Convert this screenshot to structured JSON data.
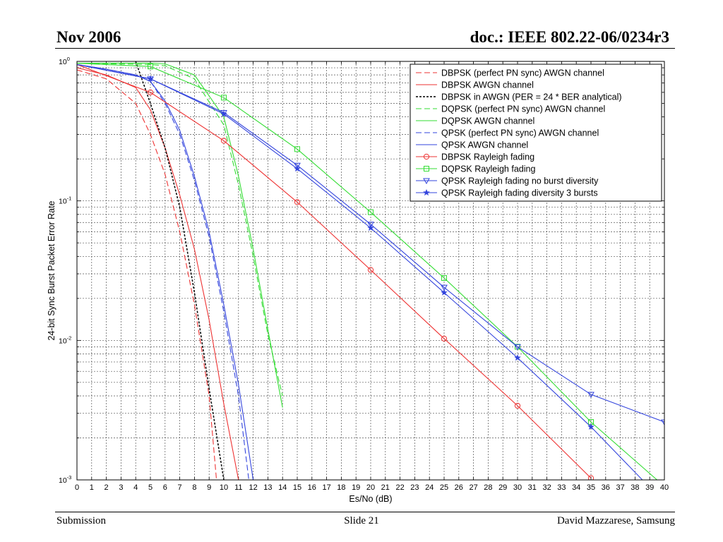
{
  "slide": {
    "header_left": "Nov 2006",
    "header_right": "doc.: IEEE 802.22-06/0234r3",
    "footer_left": "Submission",
    "footer_center": "Slide 21",
    "footer_right": "David Mazzarese, Samsung"
  },
  "colors": {
    "red": "#ee3333",
    "green": "#33dd33",
    "blue": "#3344dd",
    "black": "#000000",
    "grid": "#555555"
  },
  "chart_data": {
    "type": "line",
    "title": "",
    "xlabel": "Es/No (dB)",
    "ylabel": "24-bit Sync Burst Packet Error Rate",
    "xlim": [
      0,
      40
    ],
    "ylim": [
      0.001,
      1
    ],
    "yscale": "log",
    "grid": true,
    "legend_position": "top-right",
    "x_ticks": [
      "0",
      "1",
      "2",
      "3",
      "4",
      "5",
      "6",
      "7",
      "8",
      "9",
      "10",
      "11",
      "12",
      "13",
      "14",
      "15",
      "16",
      "17",
      "18",
      "19",
      "20",
      "21",
      "22",
      "23",
      "24",
      "25",
      "26",
      "27",
      "28",
      "29",
      "30",
      "31",
      "32",
      "33",
      "34",
      "35",
      "36",
      "37",
      "38",
      "39",
      "40"
    ],
    "y_ticks": [
      {
        "value": 1,
        "base": "10",
        "exp": "0"
      },
      {
        "value": 0.1,
        "base": "10",
        "exp": "-1"
      },
      {
        "value": 0.01,
        "base": "10",
        "exp": "-2"
      },
      {
        "value": 0.001,
        "base": "10",
        "exp": "-3"
      }
    ],
    "series": [
      {
        "name": "DBPSK (perfect PN sync) AWGN channel",
        "color": "#ee3333",
        "style": "dashed",
        "marker": "none",
        "points": [
          [
            0,
            0.87
          ],
          [
            2,
            0.75
          ],
          [
            4,
            0.5
          ],
          [
            5,
            0.3
          ],
          [
            6,
            0.155
          ],
          [
            7,
            0.06
          ],
          [
            8,
            0.018
          ],
          [
            9,
            0.004
          ],
          [
            9.5,
            0.001
          ]
        ]
      },
      {
        "name": "DBPSK AWGN channel",
        "color": "#ee3333",
        "style": "solid",
        "marker": "none",
        "points": [
          [
            0,
            0.9
          ],
          [
            2,
            0.8
          ],
          [
            4,
            0.65
          ],
          [
            5,
            0.45
          ],
          [
            6,
            0.24
          ],
          [
            7,
            0.11
          ],
          [
            8,
            0.045
          ],
          [
            9,
            0.014
          ],
          [
            10,
            0.0035
          ],
          [
            11,
            0.001
          ]
        ]
      },
      {
        "name": "DBPSK in AWGN (PER = 24 * BER analytical)",
        "color": "#000000",
        "style": "dashed",
        "marker": "none",
        "points": [
          [
            4,
            1.0
          ],
          [
            5,
            0.5
          ],
          [
            6,
            0.24
          ],
          [
            7,
            0.09
          ],
          [
            8,
            0.022
          ],
          [
            9,
            0.0045
          ],
          [
            10,
            0.001
          ]
        ]
      },
      {
        "name": "DQPSK (perfect PN sync) AWGN channel",
        "color": "#33dd33",
        "style": "dashed",
        "marker": "none",
        "points": [
          [
            0,
            0.97
          ],
          [
            5,
            0.95
          ],
          [
            6,
            0.93
          ],
          [
            8,
            0.75
          ],
          [
            10,
            0.35
          ],
          [
            11,
            0.13
          ],
          [
            12,
            0.04
          ],
          [
            13,
            0.011
          ],
          [
            14,
            0.004
          ]
        ]
      },
      {
        "name": "DQPSK AWGN channel",
        "color": "#33dd33",
        "style": "solid",
        "marker": "none",
        "points": [
          [
            0,
            0.97
          ],
          [
            5,
            0.97
          ],
          [
            6,
            0.96
          ],
          [
            8,
            0.8
          ],
          [
            10,
            0.4
          ],
          [
            11,
            0.15
          ],
          [
            12,
            0.045
          ],
          [
            13,
            0.012
          ],
          [
            14,
            0.0033
          ]
        ]
      },
      {
        "name": "QPSK (perfect PN sync) AWGN channel",
        "color": "#3344dd",
        "style": "dashed",
        "marker": "none",
        "points": [
          [
            0,
            0.95
          ],
          [
            2,
            0.88
          ],
          [
            4,
            0.8
          ],
          [
            5,
            0.72
          ],
          [
            6,
            0.5
          ],
          [
            7,
            0.3
          ],
          [
            8,
            0.14
          ],
          [
            9,
            0.055
          ],
          [
            10,
            0.016
          ],
          [
            11,
            0.004
          ],
          [
            11.7,
            0.001
          ]
        ]
      },
      {
        "name": "QPSK AWGN channel",
        "color": "#3344dd",
        "style": "solid",
        "marker": "none",
        "points": [
          [
            0,
            0.95
          ],
          [
            2,
            0.88
          ],
          [
            4,
            0.8
          ],
          [
            5,
            0.72
          ],
          [
            6,
            0.52
          ],
          [
            7,
            0.32
          ],
          [
            8,
            0.15
          ],
          [
            9,
            0.06
          ],
          [
            10,
            0.018
          ],
          [
            11,
            0.0048
          ],
          [
            12,
            0.001
          ]
        ]
      },
      {
        "name": "DBPSK Rayleigh fading",
        "color": "#ee3333",
        "style": "solid",
        "marker": "circle",
        "points": [
          [
            0,
            0.95
          ],
          [
            5,
            0.6
          ],
          [
            10,
            0.27
          ],
          [
            15,
            0.098
          ],
          [
            20,
            0.032
          ],
          [
            25,
            0.0103
          ],
          [
            30,
            0.0034
          ],
          [
            35,
            0.00103
          ]
        ],
        "markers_at": [
          5,
          10,
          15,
          20,
          25,
          30,
          35
        ]
      },
      {
        "name": "DQPSK Rayleigh fading",
        "color": "#33dd33",
        "style": "solid",
        "marker": "square",
        "points": [
          [
            0,
            0.97
          ],
          [
            5,
            0.92
          ],
          [
            10,
            0.55
          ],
          [
            15,
            0.235
          ],
          [
            20,
            0.083
          ],
          [
            25,
            0.028
          ],
          [
            30,
            0.009
          ],
          [
            35,
            0.0026
          ],
          [
            39.5,
            0.001
          ]
        ],
        "markers_at": [
          5,
          10,
          15,
          20,
          25,
          30,
          35
        ]
      },
      {
        "name": "QPSK Rayleigh fading no burst diversity",
        "color": "#3344dd",
        "style": "solid",
        "marker": "triangle-down",
        "points": [
          [
            0,
            0.95
          ],
          [
            5,
            0.75
          ],
          [
            10,
            0.43
          ],
          [
            15,
            0.18
          ],
          [
            20,
            0.068
          ],
          [
            25,
            0.024
          ],
          [
            30,
            0.009
          ],
          [
            35,
            0.0041
          ],
          [
            40,
            0.0026
          ]
        ],
        "markers_at": [
          5,
          10,
          15,
          20,
          25,
          30,
          35,
          40
        ]
      },
      {
        "name": "QPSK Rayleigh fading diversity 3 bursts",
        "color": "#3344dd",
        "style": "solid",
        "marker": "star",
        "points": [
          [
            0,
            0.95
          ],
          [
            5,
            0.75
          ],
          [
            10,
            0.42
          ],
          [
            15,
            0.17
          ],
          [
            20,
            0.064
          ],
          [
            25,
            0.022
          ],
          [
            30,
            0.0075
          ],
          [
            35,
            0.0024
          ],
          [
            38.5,
            0.001
          ]
        ],
        "markers_at": [
          5,
          10,
          15,
          20,
          25,
          30,
          35
        ]
      }
    ]
  }
}
